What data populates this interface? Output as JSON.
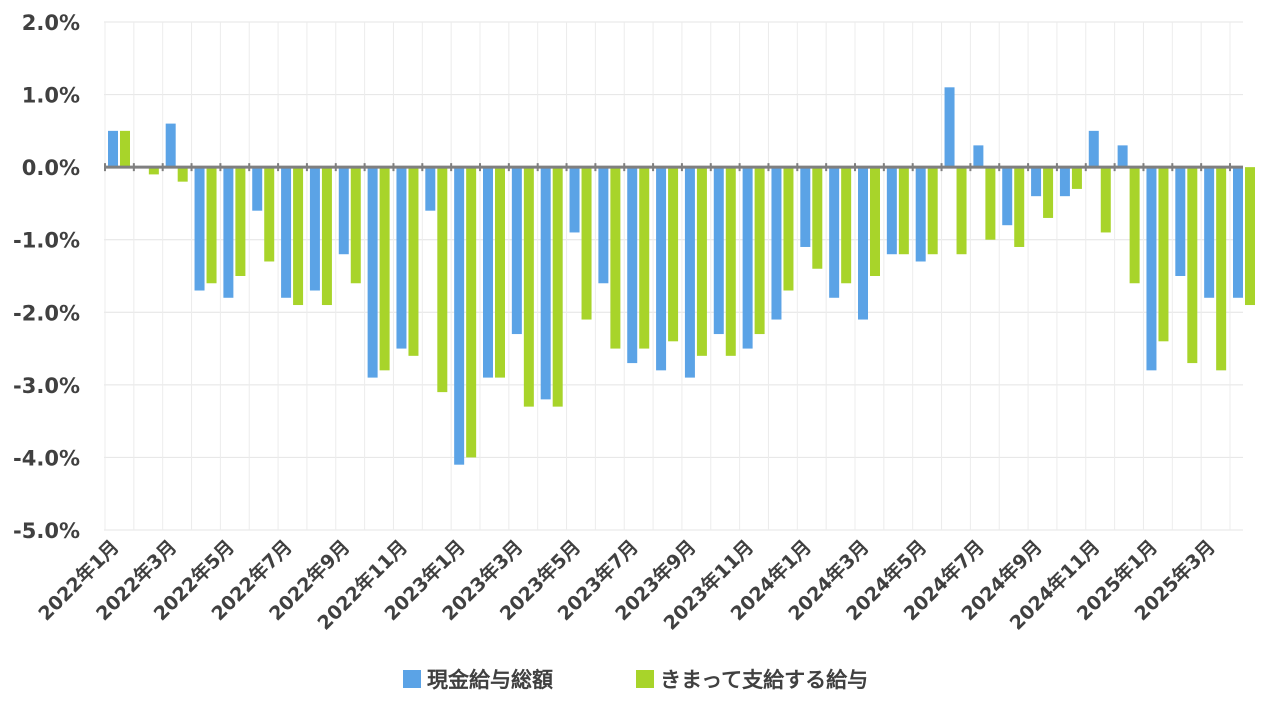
{
  "chart_data": {
    "type": "bar",
    "title": "",
    "xlabel": "",
    "ylabel": "",
    "ylim": [
      -5.0,
      2.0
    ],
    "yticks": [
      "2.0%",
      "1.0%",
      "0.0%",
      "-1.0%",
      "-2.0%",
      "-3.0%",
      "-4.0%",
      "-5.0%"
    ],
    "grid": true,
    "legend_position": "bottom",
    "categories": [
      "2022年1月",
      "2022年2月",
      "2022年3月",
      "2022年4月",
      "2022年5月",
      "2022年6月",
      "2022年7月",
      "2022年8月",
      "2022年9月",
      "2022年10月",
      "2022年11月",
      "2022年12月",
      "2023年1月",
      "2023年2月",
      "2023年3月",
      "2023年4月",
      "2023年5月",
      "2023年6月",
      "2023年7月",
      "2023年8月",
      "2023年9月",
      "2023年10月",
      "2023年11月",
      "2023年12月",
      "2024年1月",
      "2024年2月",
      "2024年3月",
      "2024年4月",
      "2024年5月",
      "2024年6月",
      "2024年7月",
      "2024年8月",
      "2024年9月",
      "2024年10月",
      "2024年11月",
      "2024年12月",
      "2025年1月",
      "2025年2月",
      "2025年3月",
      "2025年4月"
    ],
    "shown_tick_labels": [
      "2022年1月",
      "2022年3月",
      "2022年5月",
      "2022年7月",
      "2022年9月",
      "2022年11月",
      "2023年1月",
      "2023年3月",
      "2023年5月",
      "2023年7月",
      "2023年9月",
      "2023年11月",
      "2024年1月",
      "2024年3月",
      "2024年5月",
      "2024年7月",
      "2024年9月",
      "2024年11月",
      "2025年1月",
      "2025年3月"
    ],
    "series": [
      {
        "name": "現金給与総額",
        "color": "#5BA3E6",
        "values": [
          0.5,
          0.0,
          0.6,
          -1.7,
          -1.8,
          -0.6,
          -1.8,
          -1.7,
          -1.2,
          -2.9,
          -2.5,
          -0.6,
          -4.1,
          -2.9,
          -2.3,
          -3.2,
          -0.9,
          -1.6,
          -2.7,
          -2.8,
          -2.9,
          -2.3,
          -2.5,
          -2.1,
          -1.1,
          -1.8,
          -2.1,
          -1.2,
          -1.3,
          1.1,
          0.3,
          -0.8,
          -0.4,
          -0.4,
          0.5,
          0.3,
          -2.8,
          -1.5,
          -1.8,
          -1.8
        ]
      },
      {
        "name": "きまって支給する給与",
        "color": "#A8D42A",
        "values": [
          0.5,
          -0.1,
          -0.2,
          -1.6,
          -1.5,
          -1.3,
          -1.9,
          -1.9,
          -1.6,
          -2.8,
          -2.6,
          -3.1,
          -4.0,
          -2.9,
          -3.3,
          -3.3,
          -2.1,
          -2.5,
          -2.5,
          -2.4,
          -2.6,
          -2.6,
          -2.3,
          -1.7,
          -1.4,
          -1.6,
          -1.5,
          -1.2,
          -1.2,
          -1.2,
          -1.0,
          -1.1,
          -0.7,
          -0.3,
          -0.9,
          -1.6,
          -2.4,
          -2.7,
          -2.8,
          -1.9
        ]
      }
    ]
  }
}
